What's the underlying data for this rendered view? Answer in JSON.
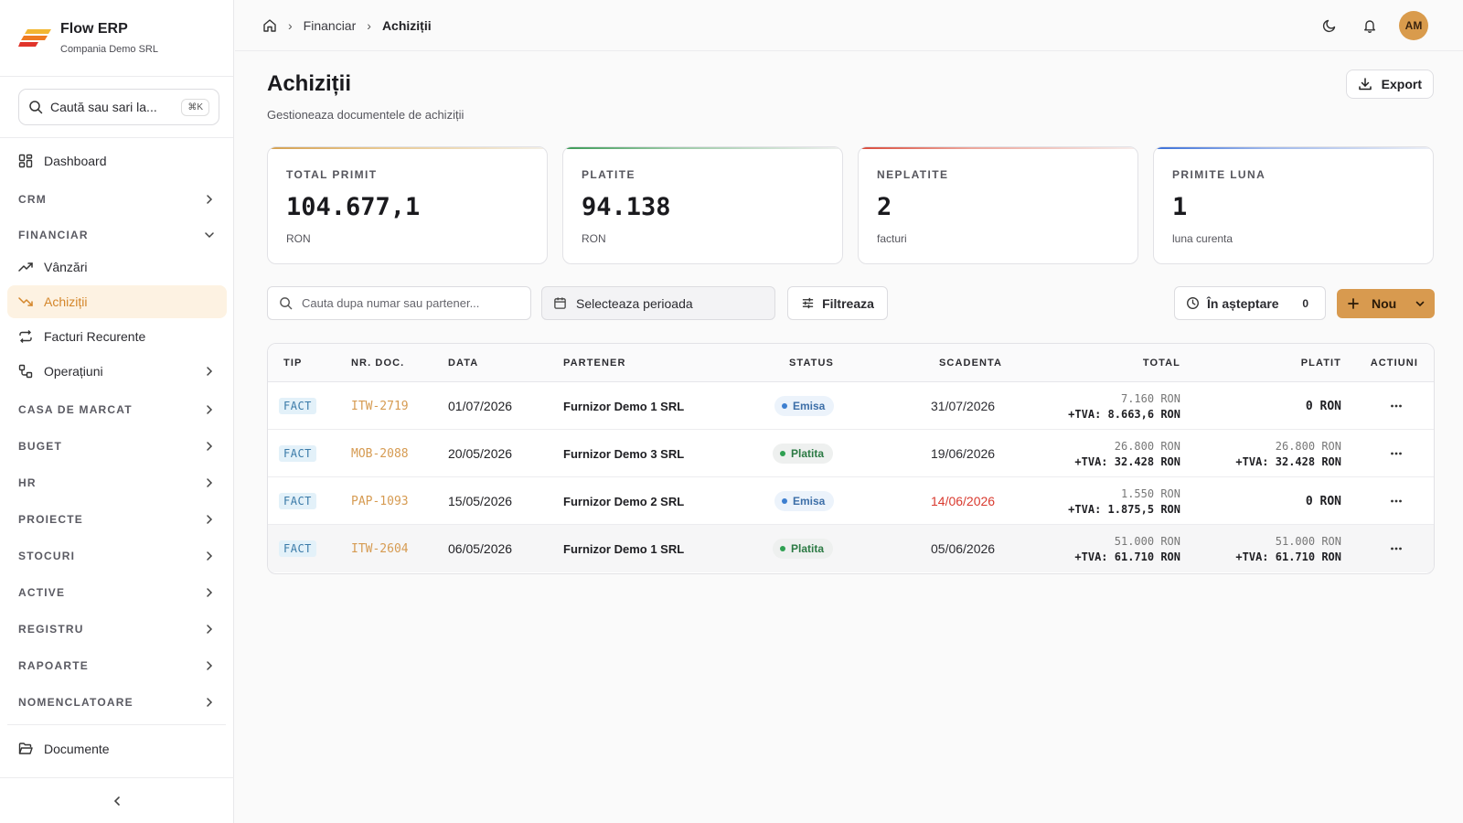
{
  "brand": {
    "name": "Flow ERP",
    "company": "Compania Demo SRL"
  },
  "search": {
    "placeholder": "Caută sau sari la...",
    "shortcut": "⌘K"
  },
  "sidebar": {
    "dashboard": "Dashboard",
    "crm": "CRM",
    "financiar": "FINANCIAR",
    "vanzari": "Vânzări",
    "achizitii": "Achiziții",
    "facturi_recurente": "Facturi Recurente",
    "operatiuni": "Operațiuni",
    "sections": [
      "CASA DE MARCAT",
      "BUGET",
      "HR",
      "PROIECTE",
      "STOCURI",
      "ACTIVE",
      "REGISTRU",
      "RAPOARTE",
      "NOMENCLATOARE"
    ],
    "documente": "Documente"
  },
  "breadcrumb": {
    "level1": "Financiar",
    "current": "Achiziții"
  },
  "user": {
    "initials": "AM"
  },
  "page": {
    "title": "Achiziții",
    "subtitle": "Gestioneaza documentele de achiziții",
    "export_label": "Export"
  },
  "stats": [
    {
      "label": "TOTAL PRIMIT",
      "value": "104.677,1",
      "unit": "RON",
      "color": "#d4a050"
    },
    {
      "label": "PLATITE",
      "value": "94.138",
      "unit": "RON",
      "color": "#3a9a55"
    },
    {
      "label": "NEPLATITE",
      "value": "2",
      "unit": "facturi",
      "color": "#d94a3a"
    },
    {
      "label": "PRIMITE LUNA",
      "value": "1",
      "unit": "luna curenta",
      "color": "#3a6fd8"
    }
  ],
  "toolbar": {
    "search_placeholder": "Cauta dupa numar sau partener...",
    "date_placeholder": "Selecteaza perioada",
    "filter_label": "Filtreaza",
    "pending_label": "În așteptare",
    "pending_count": "0",
    "new_label": "Nou"
  },
  "table": {
    "columns": [
      "TIP",
      "NR. DOC.",
      "DATA",
      "PARTENER",
      "STATUS",
      "SCADENTA",
      "TOTAL",
      "PLATIT",
      "ACTIUNI"
    ],
    "rows": [
      {
        "tip": "FACT",
        "nr": "ITW-2719",
        "data": "01/07/2026",
        "partener": "Furnizor Demo 1 SRL",
        "status": "Emisa",
        "scadenta": "31/07/2026",
        "total_net": "7.160 RON",
        "total_tva": "+TVA: 8.663,6 RON",
        "platit_net": "",
        "platit_tva": "0 RON"
      },
      {
        "tip": "FACT",
        "nr": "MOB-2088",
        "data": "20/05/2026",
        "partener": "Furnizor Demo 3 SRL",
        "status": "Platita",
        "scadenta": "19/06/2026",
        "total_net": "26.800 RON",
        "total_tva": "+TVA: 32.428 RON",
        "platit_net": "26.800 RON",
        "platit_tva": "+TVA: 32.428 RON"
      },
      {
        "tip": "FACT",
        "nr": "PAP-1093",
        "data": "15/05/2026",
        "partener": "Furnizor Demo 2 SRL",
        "status": "Emisa",
        "scadenta": "14/06/2026",
        "total_net": "1.550 RON",
        "total_tva": "+TVA: 1.875,5 RON",
        "platit_net": "",
        "platit_tva": "0 RON"
      },
      {
        "tip": "FACT",
        "nr": "ITW-2604",
        "data": "06/05/2026",
        "partener": "Furnizor Demo 1 SRL",
        "status": "Platita",
        "scadenta": "05/06/2026",
        "total_net": "51.000 RON",
        "total_tva": "+TVA: 61.710 RON",
        "platit_net": "51.000 RON",
        "platit_tva": "+TVA: 61.710 RON"
      }
    ]
  }
}
